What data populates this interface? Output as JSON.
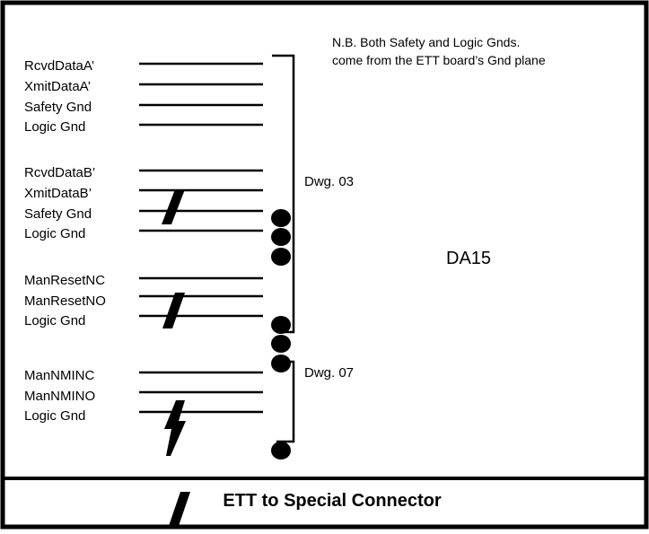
{
  "note": {
    "line1": "N.B. Both Safety and Logic Gnds.",
    "line2": "come from the ETT board’s Gnd plane"
  },
  "groups": [
    {
      "signals": [
        "RcvdDataA’",
        "XmitDataA’",
        "Safety Gnd",
        "Logic Gnd"
      ]
    },
    {
      "signals": [
        "RcvdDataB’",
        "XmitDataB’",
        "Safety Gnd",
        "Logic Gnd"
      ]
    },
    {
      "signals": [
        "ManResetNC",
        "ManResetNO",
        "Logic Gnd"
      ]
    },
    {
      "signals": [
        "ManNMINC",
        "ManNMINO",
        "Logic Gnd"
      ]
    }
  ],
  "references": {
    "dwg03": "Dwg. 03",
    "dwg07": "Dwg. 07"
  },
  "connector": "DA15",
  "title": "ETT to Special Connector"
}
